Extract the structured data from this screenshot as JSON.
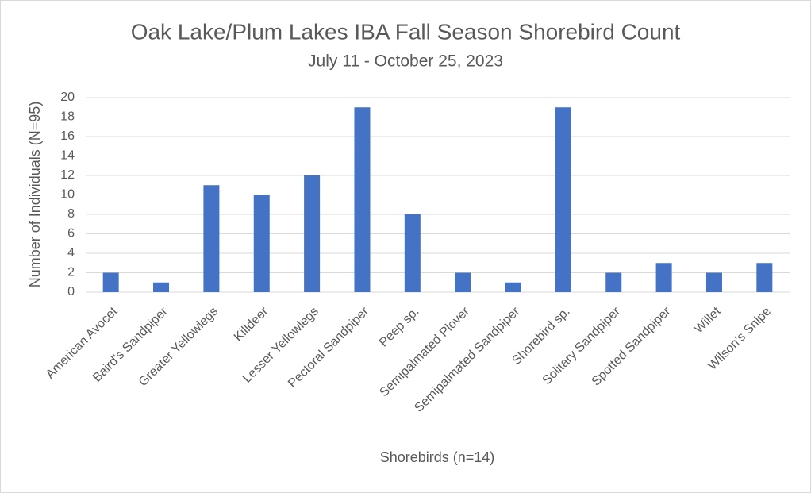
{
  "chart_data": {
    "type": "bar",
    "title": "Oak Lake/Plum Lakes IBA Fall Season Shorebird Count",
    "subtitle": "July 11 - October 25, 2023",
    "x_label": "Shorebirds (n=14)",
    "y_label": "Number of Individuals (N=95)",
    "categories": [
      "American Avocet",
      "Baird's Sandpiper",
      "Greater Yellowlegs",
      "Killdeer",
      "Lesser Yellowlegs",
      "Pectoral Sandpiper",
      "Peep sp.",
      "Semipalmated Plover",
      "Semipalmated Sandpiper",
      "Shorebird sp.",
      "Solitary Sandpiper",
      "Spotted Sandpiper",
      "Willet",
      "Wilson's Snipe"
    ],
    "values": [
      2,
      1,
      11,
      10,
      12,
      19,
      8,
      2,
      1,
      19,
      2,
      3,
      2,
      3
    ],
    "color": "#4472c4",
    "ylim": [
      0,
      20
    ],
    "yticks": [
      0,
      2,
      4,
      6,
      8,
      10,
      12,
      14,
      16,
      18,
      20
    ],
    "grid": true
  }
}
